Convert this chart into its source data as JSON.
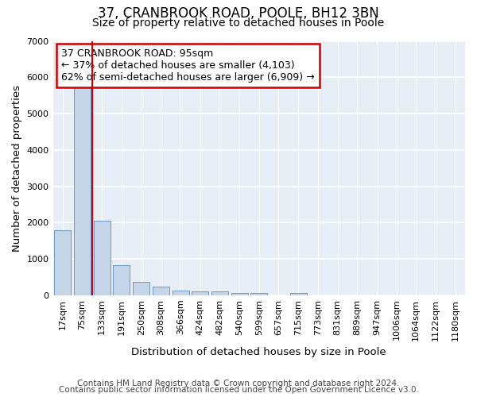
{
  "title": "37, CRANBROOK ROAD, POOLE, BH12 3BN",
  "subtitle": "Size of property relative to detached houses in Poole",
  "xlabel": "Distribution of detached houses by size in Poole",
  "ylabel": "Number of detached properties",
  "categories": [
    "17sqm",
    "75sqm",
    "133sqm",
    "191sqm",
    "250sqm",
    "308sqm",
    "366sqm",
    "424sqm",
    "482sqm",
    "540sqm",
    "599sqm",
    "657sqm",
    "715sqm",
    "773sqm",
    "831sqm",
    "889sqm",
    "947sqm",
    "1006sqm",
    "1064sqm",
    "1122sqm",
    "1180sqm"
  ],
  "values": [
    1780,
    5780,
    2060,
    820,
    370,
    230,
    130,
    100,
    100,
    70,
    60,
    0,
    65,
    0,
    0,
    0,
    0,
    0,
    0,
    0,
    0
  ],
  "bar_color": "#c5d5e8",
  "bar_edge_color": "#5b8ec4",
  "red_line_x": 1.5,
  "annotation_text": "37 CRANBROOK ROAD: 95sqm\n← 37% of detached houses are smaller (4,103)\n62% of semi-detached houses are larger (6,909) →",
  "annotation_box_color": "#ffffff",
  "annotation_box_edge": "#cc0000",
  "ylim": [
    0,
    7000
  ],
  "yticks": [
    0,
    1000,
    2000,
    3000,
    4000,
    5000,
    6000,
    7000
  ],
  "footer1": "Contains HM Land Registry data © Crown copyright and database right 2024.",
  "footer2": "Contains public sector information licensed under the Open Government Licence v3.0.",
  "bg_color": "#ffffff",
  "plot_bg_color": "#e8eef5",
  "grid_color": "#ffffff",
  "title_fontsize": 12,
  "subtitle_fontsize": 10,
  "axis_label_fontsize": 9.5,
  "tick_fontsize": 8,
  "footer_fontsize": 7.5
}
